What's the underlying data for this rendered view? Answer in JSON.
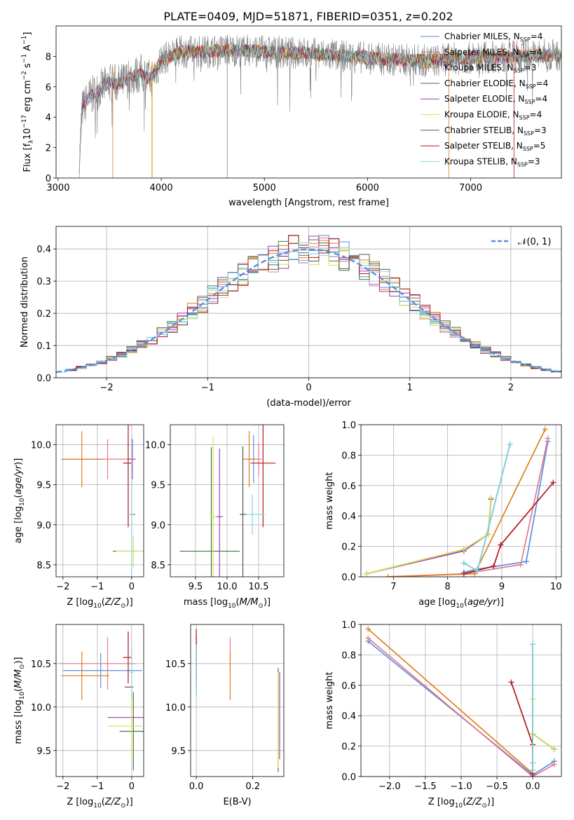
{
  "figure": {
    "title": "PLATE=0409, MJD=51871, FIBERID=0351, z=0.202"
  },
  "colors": {
    "miles_chabrier": "#5b8de0",
    "miles_salpeter": "#e2788f",
    "miles_kroupa": "#e07f20",
    "elodie_chabrier": "#3f7a3f",
    "elodie_salpeter": "#9e3fb5",
    "elodie_kroupa": "#d8e050",
    "stelib_chabrier": "#555555",
    "stelib_salpeter": "#b01818",
    "stelib_kroupa": "#7fd6e0",
    "gauss": "#5b8de0"
  },
  "legend": {
    "spectrum": [
      {
        "label": "Chabrier MILES, N",
        "sub": "SSP",
        "suffix": "=4",
        "color": "#5b8de0"
      },
      {
        "label": "Salpeter MILES, N",
        "sub": "SSP",
        "suffix": "=4",
        "color": "#e2788f"
      },
      {
        "label": "Kroupa MILES, N",
        "sub": "SSP",
        "suffix": "=3",
        "color": "#e07f20"
      },
      {
        "label": "Chabrier ELODIE, N",
        "sub": "SSP",
        "suffix": "=4",
        "color": "#3f7a3f"
      },
      {
        "label": "Salpeter ELODIE, N",
        "sub": "SSP",
        "suffix": "=4",
        "color": "#9e3fb5"
      },
      {
        "label": "Kroupa ELODIE, N",
        "sub": "SSP",
        "suffix": "=4",
        "color": "#d8e050"
      },
      {
        "label": "Chabrier STELIB, N",
        "sub": "SSP",
        "suffix": "=3",
        "color": "#555555"
      },
      {
        "label": "Salpeter STELIB, N",
        "sub": "SSP",
        "suffix": "=5",
        "color": "#b01818"
      },
      {
        "label": "Kroupa STELIB, N",
        "sub": "SSP",
        "suffix": "=3",
        "color": "#7fd6e0"
      }
    ],
    "hist": {
      "label": "𝒩(0, 1)"
    }
  },
  "chart_data": [
    {
      "id": "spectrum",
      "type": "line",
      "xlabel": "wavelength [Angstrom, rest frame]",
      "ylabel": "Flux [f  10   erg cm   s   A  ]",
      "xlim": [
        2980,
        7880
      ],
      "ylim": [
        0,
        10
      ],
      "xticks": [
        3000,
        4000,
        5000,
        6000,
        7000
      ],
      "yticks": [
        0,
        2,
        4,
        6,
        8
      ],
      "continuum_x": [
        3200,
        3230,
        3300,
        3400,
        3500,
        3600,
        3700,
        3800,
        3900,
        4000,
        4200,
        4400,
        4600,
        4800,
        5000,
        5400,
        5800,
        6200,
        6600,
        7000,
        7400,
        7800
      ],
      "continuum_y": [
        0,
        4.5,
        5.3,
        5.8,
        6.3,
        6.2,
        6.6,
        6.9,
        6.5,
        7.8,
        8.3,
        8.3,
        8.4,
        8.4,
        8.3,
        8.2,
        8.0,
        7.8,
        7.7,
        7.9,
        8.0,
        8.1
      ]
    },
    {
      "id": "residual_hist",
      "type": "line",
      "xlabel": "(data-model)/error",
      "ylabel": "Normed distribution",
      "xlim": [
        -2.5,
        2.5
      ],
      "ylim": [
        0,
        0.47
      ],
      "xticks": [
        -2,
        -1,
        0,
        1,
        2
      ],
      "yticks": [
        0.0,
        0.1,
        0.2,
        0.3,
        0.4
      ],
      "bin_edges_start": -2.5,
      "bin_width": 0.1,
      "gauss_mu": 0,
      "gauss_sigma": 1
    },
    {
      "id": "age_vs_Z",
      "type": "scatter",
      "xlabel": "Z [log  (Z/Z )]",
      "ylabel": "age  [log  (age/yr)]",
      "xlim": [
        -2.2,
        0.35
      ],
      "ylim": [
        8.35,
        10.25
      ],
      "xticks": [
        -2,
        -1,
        0
      ],
      "yticks": [
        8.5,
        9.0,
        9.5,
        10.0
      ],
      "points": [
        {
          "x": -0.95,
          "y": 9.82,
          "xerr": [
            1.1,
            0.1
          ],
          "yerr": 0.0,
          "color": "#5b8de0"
        },
        {
          "x": -0.7,
          "y": 9.82,
          "xerr": [
            1.3,
            0.7
          ],
          "yerr": 0.25,
          "color": "#e2788f"
        },
        {
          "x": -1.45,
          "y": 9.82,
          "xerr": [
            0.6,
            0.6
          ],
          "yerr": 0.35,
          "color": "#e07f20"
        },
        {
          "x": 0.05,
          "y": 8.67,
          "xerr": [
            0.6,
            0.3
          ],
          "yerr": 0.0,
          "color": "#3f7a3f"
        },
        {
          "x": 0.02,
          "y": 9.82,
          "xerr": [
            0.1,
            0.1
          ],
          "yerr": 0.25,
          "color": "#9e3fb5"
        },
        {
          "x": 0.05,
          "y": 8.67,
          "xerr": [
            0.5,
            0.3
          ],
          "yerr": 0.2,
          "color": "#d8e050"
        },
        {
          "x": 0.0,
          "y": 9.13,
          "xerr": [
            0.1,
            0.1
          ],
          "yerr": 0.0,
          "color": "#555555"
        },
        {
          "x": -0.1,
          "y": 9.77,
          "xerr": [
            0.15,
            0.1
          ],
          "yerr": 0.8,
          "color": "#b01818"
        },
        {
          "x": 0.0,
          "y": 9.13,
          "xerr": [
            0.1,
            0.05
          ],
          "yerr": 1.0,
          "color": "#7fd6e0"
        }
      ]
    },
    {
      "id": "age_vs_mass",
      "type": "scatter",
      "xlabel": "mass [log  (M/M )]",
      "ylabel": "",
      "xlim": [
        9.1,
        10.9
      ],
      "ylim": [
        8.35,
        10.25
      ],
      "xticks": [
        9.5,
        10.0,
        10.5
      ],
      "yticks": [
        8.5,
        9.0,
        9.5,
        10.0
      ],
      "points": [
        {
          "x": 10.42,
          "y": 9.82,
          "xerr": [
            0.1,
            0.05
          ],
          "yerr": 0.3,
          "color": "#5b8de0"
        },
        {
          "x": 10.5,
          "y": 9.82,
          "xerr": [
            0.1,
            0.05
          ],
          "yerr": 0.2,
          "color": "#e2788f"
        },
        {
          "x": 10.35,
          "y": 9.82,
          "xerr": [
            0.1,
            0.1
          ],
          "yerr": 0.35,
          "color": "#e07f20"
        },
        {
          "x": 9.75,
          "y": 8.67,
          "xerr": [
            0.5,
            0.45
          ],
          "yerr": 1.3,
          "color": "#3f7a3f"
        },
        {
          "x": 9.88,
          "y": 9.1,
          "xerr": [
            0.05,
            0.05
          ],
          "yerr": 0.85,
          "color": "#9e3fb5"
        },
        {
          "x": 9.78,
          "y": 9.1,
          "xerr": [
            0.05,
            0.05
          ],
          "yerr": 1.0,
          "color": "#d8e050"
        },
        {
          "x": 10.25,
          "y": 9.13,
          "xerr": [
            0.05,
            0.05
          ],
          "yerr": 0.85,
          "color": "#555555"
        },
        {
          "x": 10.57,
          "y": 9.77,
          "xerr": [
            0.2,
            0.2
          ],
          "yerr": 0.8,
          "color": "#b01818"
        },
        {
          "x": 10.4,
          "y": 9.13,
          "xerr": [
            0.1,
            0.2
          ],
          "yerr": 0.25,
          "color": "#7fd6e0"
        }
      ]
    },
    {
      "id": "weight_vs_age",
      "type": "line",
      "xlabel": "age  [log  (age/yr)]",
      "ylabel": "mass weight",
      "xlim": [
        6.4,
        10.1
      ],
      "ylim": [
        0,
        1.0
      ],
      "xticks": [
        7,
        8,
        9,
        10
      ],
      "yticks": [
        0.0,
        0.2,
        0.4,
        0.6,
        0.8,
        1.0
      ],
      "series": [
        {
          "color": "#5b8de0",
          "x": [
            8.3,
            8.55,
            9.45,
            9.85
          ],
          "y": [
            0.03,
            0.05,
            0.1,
            0.89
          ]
        },
        {
          "color": "#e2788f",
          "x": [
            6.9,
            8.3,
            9.35,
            9.85
          ],
          "y": [
            0.0,
            0.02,
            0.08,
            0.91
          ]
        },
        {
          "color": "#e07f20",
          "x": [
            6.9,
            8.5,
            9.8
          ],
          "y": [
            0.0,
            0.02,
            0.97
          ]
        },
        {
          "color": "#3f7a3f",
          "x": [
            6.5,
            8.3,
            8.75,
            8.8
          ],
          "y": [
            0.02,
            0.18,
            0.28,
            0.51
          ]
        },
        {
          "color": "#9e3fb5",
          "x": [
            6.5,
            8.3,
            8.75,
            8.8
          ],
          "y": [
            0.02,
            0.17,
            0.28,
            0.51
          ]
        },
        {
          "color": "#d8e050",
          "x": [
            6.5,
            8.3,
            8.75,
            8.8
          ],
          "y": [
            0.02,
            0.18,
            0.28,
            0.52
          ]
        },
        {
          "color": "#555555",
          "x": [
            8.3,
            8.55,
            9.15
          ],
          "y": [
            0.09,
            0.04,
            0.87
          ]
        },
        {
          "color": "#b01818",
          "x": [
            8.3,
            8.85,
            8.98,
            9.95
          ],
          "y": [
            0.02,
            0.07,
            0.21,
            0.62
          ]
        },
        {
          "color": "#7fd6e0",
          "x": [
            8.3,
            8.55,
            9.15
          ],
          "y": [
            0.09,
            0.04,
            0.87
          ]
        }
      ]
    },
    {
      "id": "mass_vs_Z",
      "type": "scatter",
      "xlabel": "Z [log  (Z/Z )]",
      "ylabel": "mass [log  (M/M )]",
      "xlim": [
        -2.2,
        0.35
      ],
      "ylim": [
        9.2,
        10.95
      ],
      "xticks": [
        -2,
        -1,
        0
      ],
      "yticks": [
        9.5,
        10.0,
        10.5
      ],
      "points": [
        {
          "x": -0.9,
          "y": 10.42,
          "xerr": [
            1.1,
            1.2
          ],
          "yerr": 0.2,
          "color": "#5b8de0"
        },
        {
          "x": -0.7,
          "y": 10.5,
          "xerr": [
            1.4,
            0.8
          ],
          "yerr": 0.3,
          "color": "#e2788f"
        },
        {
          "x": -1.45,
          "y": 10.36,
          "xerr": [
            0.6,
            0.8
          ],
          "yerr": 0.28,
          "color": "#e07f20"
        },
        {
          "x": 0.05,
          "y": 9.72,
          "xerr": [
            0.4,
            0.3
          ],
          "yerr": 0.45,
          "color": "#3f7a3f"
        },
        {
          "x": 0.0,
          "y": 9.88,
          "xerr": [
            0.7,
            0.35
          ],
          "yerr": 0.0,
          "color": "#9e3fb5"
        },
        {
          "x": 0.0,
          "y": 9.78,
          "xerr": [
            0.7,
            0.3
          ],
          "yerr": 0.35,
          "color": "#d8e050"
        },
        {
          "x": 0.0,
          "y": 10.23,
          "xerr": [
            0.2,
            0.05
          ],
          "yerr": 0.0,
          "color": "#555555"
        },
        {
          "x": -0.1,
          "y": 10.57,
          "xerr": [
            0.15,
            0.1
          ],
          "yerr": 0.3,
          "color": "#b01818"
        },
        {
          "x": 0.0,
          "y": 10.4,
          "xerr": [
            0.05,
            0.05
          ],
          "yerr": 0.3,
          "color": "#7fd6e0"
        }
      ]
    },
    {
      "id": "mass_vs_EBV",
      "type": "scatter",
      "xlabel": "E(B-V)",
      "ylabel": "",
      "xlim": [
        -0.02,
        0.31
      ],
      "ylim": [
        9.2,
        10.95
      ],
      "xticks": [
        0.0,
        0.2
      ],
      "yticks": [
        9.5,
        10.0,
        10.5
      ],
      "points": [
        {
          "x": 0.0,
          "y": 10.42,
          "yerr": 0.3,
          "color": "#5b8de0"
        },
        {
          "x": 0.12,
          "y": 10.6,
          "yerr": 0.2,
          "color": "#e2788f"
        },
        {
          "x": 0.12,
          "y": 10.36,
          "yerr": 0.28,
          "color": "#e07f20"
        },
        {
          "x": 0.29,
          "y": 9.85,
          "yerr": 0.6,
          "color": "#3f7a3f"
        },
        {
          "x": 0.295,
          "y": 9.9,
          "yerr": 0.5,
          "color": "#9e3fb5"
        },
        {
          "x": 0.29,
          "y": 9.85,
          "yerr": 0.55,
          "color": "#d8e050"
        },
        {
          "x": 0.0,
          "y": 10.5,
          "yerr": 0.3,
          "color": "#555555"
        },
        {
          "x": 0.0,
          "y": 10.6,
          "yerr": 0.3,
          "color": "#b01818"
        },
        {
          "x": 0.0,
          "y": 10.42,
          "yerr": 0.3,
          "color": "#7fd6e0"
        }
      ]
    },
    {
      "id": "weight_vs_Z",
      "type": "line",
      "xlabel": "Z [log  (Z/Z )]",
      "ylabel": "mass weight",
      "xlim": [
        -2.4,
        0.4
      ],
      "ylim": [
        0,
        1.0
      ],
      "xticks": [
        -2.0,
        -1.5,
        -1.0,
        -0.5,
        0.0
      ],
      "yticks": [
        0.0,
        0.2,
        0.4,
        0.6,
        0.8,
        1.0
      ],
      "series": [
        {
          "color": "#5b8de0",
          "x": [
            -2.3,
            0.0,
            0.3
          ],
          "y": [
            0.89,
            0.01,
            0.1
          ]
        },
        {
          "color": "#e2788f",
          "x": [
            -2.3,
            0.0,
            0.3
          ],
          "y": [
            0.91,
            0.0,
            0.08
          ]
        },
        {
          "color": "#e07f20",
          "x": [
            -2.3,
            0.0
          ],
          "y": [
            0.97,
            0.02
          ]
        },
        {
          "color": "#3f7a3f",
          "x": [
            0.0,
            0.0,
            0.3
          ],
          "y": [
            0.02,
            0.28,
            0.18
          ]
        },
        {
          "color": "#9e3fb5",
          "x": [
            0.0,
            0.0,
            0.3
          ],
          "y": [
            0.02,
            0.28,
            0.18
          ]
        },
        {
          "color": "#d8e050",
          "x": [
            0.0,
            0.0,
            0.0,
            0.3
          ],
          "y": [
            0.02,
            0.51,
            0.28,
            0.18
          ]
        },
        {
          "color": "#555555",
          "x": [
            0.0,
            0.0,
            0.0
          ],
          "y": [
            0.09,
            0.04,
            0.87
          ]
        },
        {
          "color": "#b01818",
          "x": [
            -0.3,
            0.0,
            0.0
          ],
          "y": [
            0.62,
            0.21,
            0.02
          ]
        },
        {
          "color": "#7fd6e0",
          "x": [
            0.0,
            0.0,
            0.0
          ],
          "y": [
            0.09,
            0.04,
            0.87
          ]
        }
      ]
    }
  ]
}
